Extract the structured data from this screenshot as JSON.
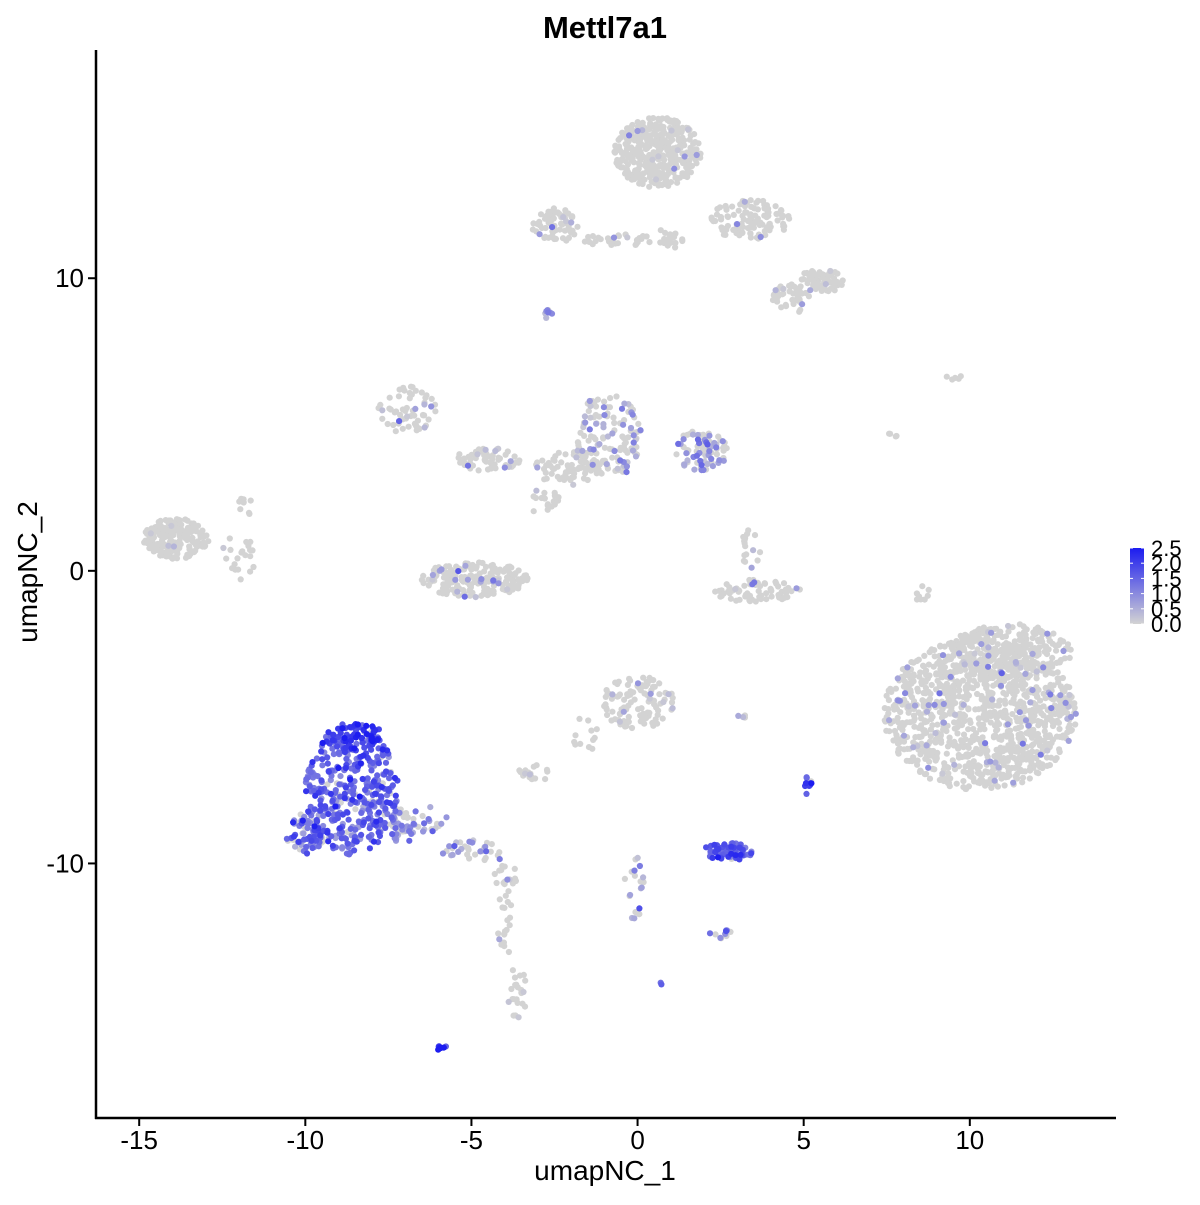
{
  "chart_data": {
    "type": "scatter",
    "title": "Mettl7a1",
    "xlabel": "umapNC_1",
    "ylabel": "umapNC_2",
    "xlim": [
      -16.3,
      14.4
    ],
    "ylim": [
      -18.7,
      17.8
    ],
    "xticks": [
      -15,
      -10,
      -5,
      0,
      5,
      10
    ],
    "xtick_labels": [
      "-15",
      "-10",
      "-5",
      "0",
      "5",
      "10"
    ],
    "yticks": [
      -10,
      0,
      10
    ],
    "ytick_labels": [
      "-10",
      "0",
      "10"
    ],
    "grid": false,
    "legend_position": "right",
    "colorbar": {
      "min": 0.0,
      "max": 2.5,
      "low_color": "#d3d3d3",
      "high_color": "#1c1cf0",
      "ticks": [
        0.0,
        0.5,
        1.0,
        1.5,
        2.0,
        2.5
      ],
      "tick_labels": [
        "0.0",
        "0.5",
        "1.0",
        "1.5",
        "2.0",
        "2.5"
      ]
    },
    "clusters": [
      {
        "cx": -8.6,
        "cy": -7.5,
        "rx": 1.4,
        "ry": 2.2,
        "n": 380,
        "expr_mean": 1.5,
        "expr_prob": 0.92
      },
      {
        "cx": -8.5,
        "cy": -5.7,
        "rx": 0.9,
        "ry": 0.5,
        "n": 60,
        "expr_mean": 2.2,
        "expr_prob": 1.0
      },
      {
        "cx": -10.0,
        "cy": -9.0,
        "rx": 0.6,
        "ry": 0.7,
        "n": 70,
        "expr_mean": 1.3,
        "expr_prob": 0.85
      },
      {
        "cx": -7.2,
        "cy": -8.8,
        "rx": 0.5,
        "ry": 0.6,
        "n": 30,
        "expr_mean": 1.0,
        "expr_prob": 0.6
      },
      {
        "cx": -6.6,
        "cy": -8.5,
        "rx": 0.9,
        "ry": 0.5,
        "n": 30,
        "expr_mean": 0.9,
        "expr_prob": 0.5
      },
      {
        "cx": -5.0,
        "cy": -9.7,
        "rx": 0.9,
        "ry": 0.5,
        "n": 35,
        "expr_mean": 0.8,
        "expr_prob": 0.4
      },
      {
        "cx": -4.0,
        "cy": -10.4,
        "rx": 0.4,
        "ry": 0.4,
        "n": 15,
        "expr_mean": 0.6,
        "expr_prob": 0.3
      },
      {
        "cx": -4.0,
        "cy": -12.0,
        "rx": 0.25,
        "ry": 1.2,
        "n": 20,
        "expr_mean": 0.3,
        "expr_prob": 0.15
      },
      {
        "cx": -3.6,
        "cy": -14.5,
        "rx": 0.3,
        "ry": 1.0,
        "n": 22,
        "expr_mean": 0.5,
        "expr_prob": 0.3
      },
      {
        "cx": -5.9,
        "cy": -16.3,
        "rx": 0.2,
        "ry": 0.1,
        "n": 8,
        "expr_mean": 2.2,
        "expr_prob": 1.0
      },
      {
        "cx": 2.7,
        "cy": -9.6,
        "rx": 0.8,
        "ry": 0.3,
        "n": 70,
        "expr_mean": 1.7,
        "expr_prob": 0.97
      },
      {
        "cx": 2.5,
        "cy": -12.4,
        "rx": 0.35,
        "ry": 0.2,
        "n": 10,
        "expr_mean": 1.2,
        "expr_prob": 0.7
      },
      {
        "cx": 5.1,
        "cy": -7.3,
        "rx": 0.15,
        "ry": 0.4,
        "n": 10,
        "expr_mean": 2.0,
        "expr_prob": 0.9
      },
      {
        "cx": 0.0,
        "cy": -4.5,
        "rx": 1.1,
        "ry": 0.9,
        "n": 110,
        "expr_mean": 0.4,
        "expr_prob": 0.1
      },
      {
        "cx": -3.0,
        "cy": -6.9,
        "rx": 0.6,
        "ry": 0.3,
        "n": 20,
        "expr_mean": 0.3,
        "expr_prob": 0.1
      },
      {
        "cx": -1.6,
        "cy": -5.6,
        "rx": 0.4,
        "ry": 0.6,
        "n": 12,
        "expr_mean": 0.2,
        "expr_prob": 0.05
      },
      {
        "cx": -0.1,
        "cy": -10.8,
        "rx": 0.3,
        "ry": 1.1,
        "n": 20,
        "expr_mean": 0.8,
        "expr_prob": 0.4
      },
      {
        "cx": 10.3,
        "cy": -4.9,
        "rx": 2.9,
        "ry": 2.6,
        "n": 1100,
        "expr_mean": 0.6,
        "expr_prob": 0.05
      },
      {
        "cx": 11.2,
        "cy": -2.8,
        "rx": 1.9,
        "ry": 1.0,
        "n": 250,
        "expr_mean": 0.6,
        "expr_prob": 0.04
      },
      {
        "cx": 8.6,
        "cy": -0.8,
        "rx": 0.2,
        "ry": 0.6,
        "n": 8,
        "expr_mean": 0.1,
        "expr_prob": 0.0
      },
      {
        "cx": 3.6,
        "cy": -0.7,
        "rx": 1.3,
        "ry": 0.4,
        "n": 70,
        "expr_mean": 0.5,
        "expr_prob": 0.08
      },
      {
        "cx": 3.4,
        "cy": 0.8,
        "rx": 0.3,
        "ry": 0.7,
        "n": 18,
        "expr_mean": 0.5,
        "expr_prob": 0.2
      },
      {
        "cx": -4.9,
        "cy": -0.3,
        "rx": 1.6,
        "ry": 0.6,
        "n": 200,
        "expr_mean": 0.6,
        "expr_prob": 0.08
      },
      {
        "cx": -4.5,
        "cy": 3.8,
        "rx": 1.0,
        "ry": 0.4,
        "n": 60,
        "expr_mean": 0.5,
        "expr_prob": 0.1
      },
      {
        "cx": -6.9,
        "cy": 5.5,
        "rx": 0.9,
        "ry": 0.8,
        "n": 60,
        "expr_mean": 0.5,
        "expr_prob": 0.08
      },
      {
        "cx": -0.9,
        "cy": 4.6,
        "rx": 1.0,
        "ry": 1.5,
        "n": 140,
        "expr_mean": 0.7,
        "expr_prob": 0.3
      },
      {
        "cx": 1.9,
        "cy": 4.1,
        "rx": 0.8,
        "ry": 0.7,
        "n": 90,
        "expr_mean": 0.9,
        "expr_prob": 0.45
      },
      {
        "cx": -2.1,
        "cy": 3.5,
        "rx": 1.0,
        "ry": 0.6,
        "n": 70,
        "expr_mean": 0.4,
        "expr_prob": 0.08
      },
      {
        "cx": -2.8,
        "cy": 2.4,
        "rx": 0.5,
        "ry": 0.5,
        "n": 20,
        "expr_mean": 0.4,
        "expr_prob": 0.05
      },
      {
        "cx": -13.9,
        "cy": 1.1,
        "rx": 1.0,
        "ry": 0.7,
        "n": 200,
        "expr_mean": 0.4,
        "expr_prob": 0.02
      },
      {
        "cx": -12.0,
        "cy": 0.5,
        "rx": 0.5,
        "ry": 0.8,
        "n": 22,
        "expr_mean": 0.4,
        "expr_prob": 0.05
      },
      {
        "cx": -11.8,
        "cy": 2.2,
        "rx": 0.3,
        "ry": 0.3,
        "n": 10,
        "expr_mean": 0.2,
        "expr_prob": 0.0
      },
      {
        "cx": 0.6,
        "cy": 14.3,
        "rx": 1.3,
        "ry": 1.2,
        "n": 400,
        "expr_mean": 0.5,
        "expr_prob": 0.03
      },
      {
        "cx": 3.4,
        "cy": 12.0,
        "rx": 1.2,
        "ry": 0.7,
        "n": 110,
        "expr_mean": 0.5,
        "expr_prob": 0.07
      },
      {
        "cx": 5.5,
        "cy": 9.9,
        "rx": 0.7,
        "ry": 0.4,
        "n": 70,
        "expr_mean": 0.4,
        "expr_prob": 0.03
      },
      {
        "cx": 4.6,
        "cy": 9.3,
        "rx": 0.6,
        "ry": 0.5,
        "n": 40,
        "expr_mean": 0.4,
        "expr_prob": 0.05
      },
      {
        "cx": -2.5,
        "cy": 11.8,
        "rx": 0.7,
        "ry": 0.6,
        "n": 70,
        "expr_mean": 0.5,
        "expr_prob": 0.1
      },
      {
        "cx": -0.6,
        "cy": 11.3,
        "rx": 1.2,
        "ry": 0.2,
        "n": 30,
        "expr_mean": 0.3,
        "expr_prob": 0.03
      },
      {
        "cx": 1.0,
        "cy": 11.5,
        "rx": 0.4,
        "ry": 0.5,
        "n": 20,
        "expr_mean": 0.3,
        "expr_prob": 0.03
      },
      {
        "cx": -2.7,
        "cy": 8.8,
        "rx": 0.15,
        "ry": 0.2,
        "n": 8,
        "expr_mean": 1.0,
        "expr_prob": 0.6
      },
      {
        "cx": 9.5,
        "cy": 6.6,
        "rx": 0.3,
        "ry": 0.1,
        "n": 5,
        "expr_mean": 0.0,
        "expr_prob": 0.0
      },
      {
        "cx": 7.7,
        "cy": 4.5,
        "rx": 0.3,
        "ry": 0.3,
        "n": 4,
        "expr_mean": 0.0,
        "expr_prob": 0.0
      },
      {
        "cx": 3.3,
        "cy": -5.0,
        "rx": 0.3,
        "ry": 0.1,
        "n": 4,
        "expr_mean": 0.3,
        "expr_prob": 0.2
      },
      {
        "cx": 0.7,
        "cy": -14.1,
        "rx": 0.05,
        "ry": 0.05,
        "n": 2,
        "expr_mean": 1.5,
        "expr_prob": 1.0
      }
    ]
  }
}
